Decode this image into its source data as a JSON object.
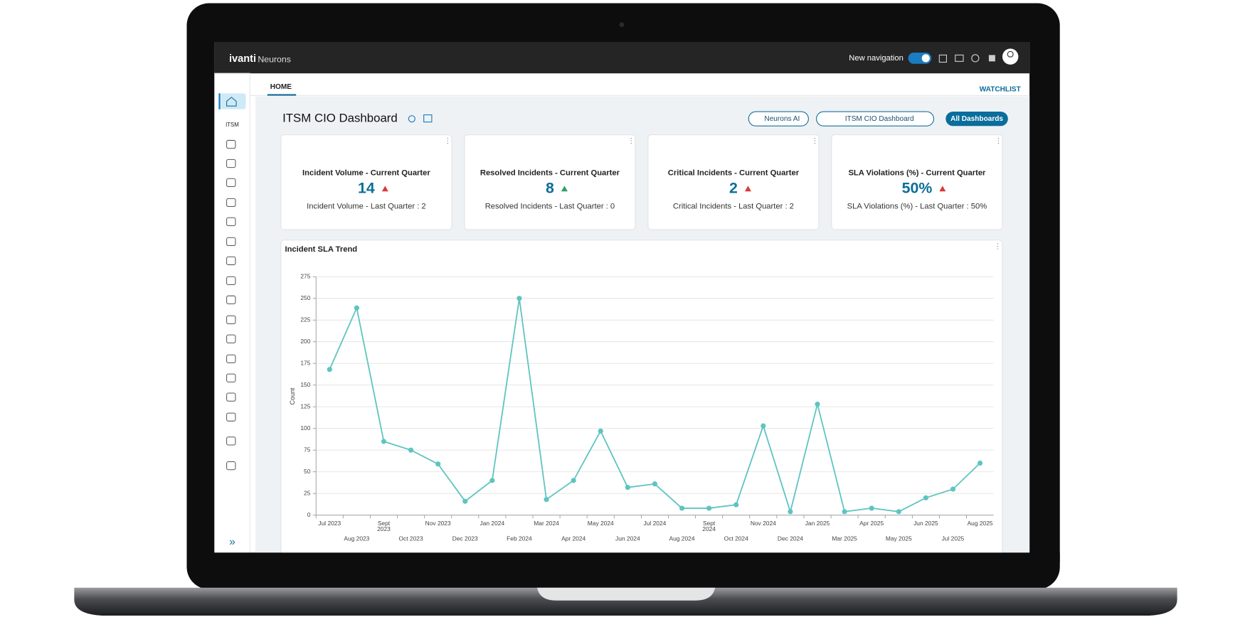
{
  "header": {
    "brand": "ivanti",
    "product": "Neurons",
    "toggle_label": "New navigation"
  },
  "sidebar": {
    "section": "ITSM"
  },
  "tabs": {
    "home": "HOME",
    "watchlist": "WATCHLIST"
  },
  "dashboard": {
    "title": "ITSM CIO Dashboard",
    "buttons": [
      "Neurons AI",
      "ITSM CIO Dashboard",
      "All Dashboards"
    ]
  },
  "kpis": [
    {
      "title": "Incident Volume - Current Quarter",
      "value": "14",
      "indicator_color": "#d93a3a",
      "subtitle": "Incident Volume - Last Quarter : 2"
    },
    {
      "title": "Resolved Incidents - Current Quarter",
      "value": "8",
      "indicator_color": "#2e9e6a",
      "subtitle": "Resolved Incidents - Last Quarter : 0"
    },
    {
      "title": "Critical Incidents - Current Quarter",
      "value": "2",
      "indicator_color": "#d93a3a",
      "subtitle": "Critical Incidents - Last Quarter : 2"
    },
    {
      "title": "SLA Violations (%) - Current Quarter",
      "value": "50%",
      "indicator_color": "#d93a3a",
      "subtitle": "SLA Violations (%) - Last Quarter : 50%"
    }
  ],
  "chart_data": {
    "type": "line",
    "title": "Incident SLA Trend",
    "y_label": "Count",
    "categories": [
      "Jul 2023",
      "Aug 2023",
      "Sept 2023",
      "Oct 2023",
      "Nov 2023",
      "Dec 2023",
      "Jan 2024",
      "Feb 2024",
      "Mar 2024",
      "Apr 2024",
      "May 2024",
      "Jun 2024",
      "Jul 2024",
      "Aug 2024",
      "Sept 2024",
      "Oct 2024",
      "Nov 2024",
      "Dec 2024",
      "Jan 2025",
      "Mar 2025",
      "Apr 2025",
      "May 2025",
      "Jun 2025",
      "Jul 2025",
      "Aug 2025"
    ],
    "values": [
      168,
      239,
      85,
      75,
      59,
      16,
      40,
      250,
      18,
      40,
      97,
      32,
      36,
      8,
      8,
      12,
      103,
      4,
      128,
      4,
      8,
      4,
      20,
      30,
      60
    ],
    "color": "#5ec4c0",
    "ylim": [
      0,
      275
    ],
    "yticks": [
      0,
      25,
      50,
      75,
      100,
      125,
      150,
      175,
      200,
      225,
      250,
      275
    ],
    "grid": true
  }
}
